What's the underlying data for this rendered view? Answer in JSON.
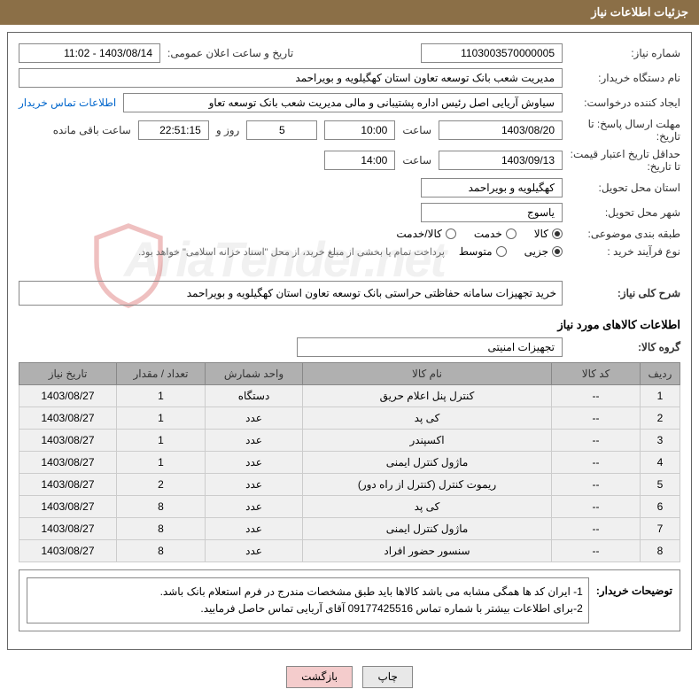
{
  "header": {
    "title": "جزئیات اطلاعات نیاز"
  },
  "fields": {
    "need_number_label": "شماره نیاز:",
    "need_number": "1103003570000005",
    "announce_date_label": "تاریخ و ساعت اعلان عمومی:",
    "announce_date": "1403/08/14 - 11:02",
    "buyer_org_label": "نام دستگاه خریدار:",
    "buyer_org": "مدیریت شعب بانک توسعه تعاون استان کهگیلویه و بویراحمد",
    "requester_label": "ایجاد کننده درخواست:",
    "requester": "سیاوش آریایی اصل رئیس اداره پشتیبانی و مالی مدیریت شعب بانک توسعه تعاو",
    "contact_link": "اطلاعات تماس خریدار",
    "deadline_label": "مهلت ارسال پاسخ: تا تاریخ:",
    "deadline_date": "1403/08/20",
    "time_label": "ساعت",
    "deadline_time": "10:00",
    "remaining_days": "5",
    "days_label": "روز و",
    "remaining_time": "22:51:15",
    "remaining_label": "ساعت باقی مانده",
    "validity_label": "حداقل تاریخ اعتبار قیمت: تا تاریخ:",
    "validity_date": "1403/09/13",
    "validity_time": "14:00",
    "province_label": "استان محل تحویل:",
    "province": "کهگیلویه و بویراحمد",
    "city_label": "شهر محل تحویل:",
    "city": "یاسوج",
    "category_label": "طبقه بندی موضوعی:",
    "cat_goods": "کالا",
    "cat_service": "خدمت",
    "cat_both": "کالا/خدمت",
    "process_label": "نوع فرآیند خرید :",
    "proc_partial": "جزیی",
    "proc_medium": "متوسط",
    "payment_note": "پرداخت تمام یا بخشی از مبلغ خرید، از محل \"اسناد خزانه اسلامی\" خواهد بود.",
    "general_desc_label": "شرح کلی نیاز:",
    "general_desc": "خرید تجهیزات سامانه حفاظتی حراستی بانک توسعه تعاون استان کهگیلویه و بویراحمد",
    "items_section_title": "اطلاعات کالاهای مورد نیاز",
    "group_label": "گروه کالا:",
    "group_value": "تجهیزات امنیتی",
    "buyer_notes_label": "توضیحات خریدار:",
    "notes_line1": "1- ایران کد ها همگی مشابه می باشد کالاها باید طبق مشخصات مندرج در فرم استعلام بانک باشد.",
    "notes_line2": "2-برای اطلاعات بیشتر با شماره تماس 09177425516 آقای آریایی تماس حاصل فرمایید."
  },
  "table": {
    "headers": {
      "row": "ردیف",
      "code": "کد کالا",
      "name": "نام کالا",
      "unit": "واحد شمارش",
      "qty": "تعداد / مقدار",
      "date": "تاریخ نیاز"
    },
    "rows": [
      {
        "n": "1",
        "code": "--",
        "name": "کنترل پنل اعلام حریق",
        "unit": "دستگاه",
        "qty": "1",
        "date": "1403/08/27"
      },
      {
        "n": "2",
        "code": "--",
        "name": "کی پد",
        "unit": "عدد",
        "qty": "1",
        "date": "1403/08/27"
      },
      {
        "n": "3",
        "code": "--",
        "name": "اکسپندر",
        "unit": "عدد",
        "qty": "1",
        "date": "1403/08/27"
      },
      {
        "n": "4",
        "code": "--",
        "name": "ماژول کنترل ایمنی",
        "unit": "عدد",
        "qty": "1",
        "date": "1403/08/27"
      },
      {
        "n": "5",
        "code": "--",
        "name": "ریموت کنترل (کنترل از راه دور)",
        "unit": "عدد",
        "qty": "2",
        "date": "1403/08/27"
      },
      {
        "n": "6",
        "code": "--",
        "name": "کی پد",
        "unit": "عدد",
        "qty": "8",
        "date": "1403/08/27"
      },
      {
        "n": "7",
        "code": "--",
        "name": "ماژول کنترل ایمنی",
        "unit": "عدد",
        "qty": "8",
        "date": "1403/08/27"
      },
      {
        "n": "8",
        "code": "--",
        "name": "سنسور حضور افراد",
        "unit": "عدد",
        "qty": "8",
        "date": "1403/08/27"
      }
    ]
  },
  "buttons": {
    "print": "چاپ",
    "back": "بازگشت"
  },
  "watermark": "AriaTender.net",
  "colors": {
    "header_bg": "#8b6f47",
    "header_text": "#ffffff",
    "border": "#888888",
    "th_bg": "#b0b0b0",
    "td_bg": "#f0f0f0",
    "link": "#0066cc",
    "btn_back_bg": "#f4cccc"
  }
}
